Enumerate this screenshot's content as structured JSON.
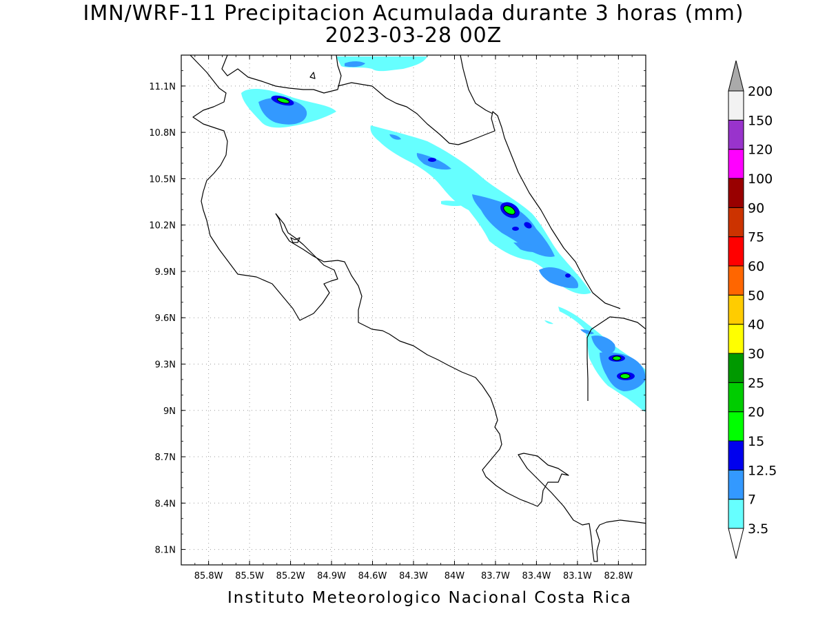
{
  "title": "IMN/WRF-11 Precipitacion Acumulada durante 3 horas (mm)",
  "subtitle": "2023-03-28 00Z",
  "footer": "Instituto Meteorologico Nacional Costa Rica",
  "map": {
    "lon_range": [
      -86.0,
      -82.6
    ],
    "lat_range": [
      8.0,
      11.3
    ],
    "x_ticks": [
      "85.8W",
      "85.5W",
      "85.2W",
      "84.9W",
      "84.6W",
      "84.3W",
      "84W",
      "83.7W",
      "83.4W",
      "83.1W",
      "82.8W"
    ],
    "x_tick_values": [
      -85.8,
      -85.5,
      -85.2,
      -84.9,
      -84.6,
      -84.3,
      -84.0,
      -83.7,
      -83.4,
      -83.1,
      -82.8
    ],
    "y_ticks": [
      "8.1N",
      "8.4N",
      "8.7N",
      "9N",
      "9.3N",
      "9.6N",
      "9.9N",
      "10.2N",
      "10.5N",
      "10.8N",
      "11.1N"
    ],
    "y_tick_values": [
      8.1,
      8.4,
      8.7,
      9.0,
      9.3,
      9.6,
      9.9,
      10.2,
      10.5,
      10.8,
      11.1
    ],
    "grid": "dotted"
  },
  "colorbar": {
    "levels": [
      "3.5",
      "7",
      "12.5",
      "15",
      "20",
      "25",
      "30",
      "40",
      "50",
      "60",
      "75",
      "90",
      "100",
      "120",
      "150",
      "200"
    ],
    "colors": [
      "#66ffff",
      "#3399ff",
      "#0000ee",
      "#00ff00",
      "#00cc00",
      "#009900",
      "#ffff00",
      "#ffcc00",
      "#ff6600",
      "#ff0000",
      "#cc3300",
      "#990000",
      "#ff00ff",
      "#9933cc",
      "#f2f2f2"
    ],
    "upper_cap_color": "#aaaaaa",
    "lower_cap_color": "#ffffff"
  }
}
